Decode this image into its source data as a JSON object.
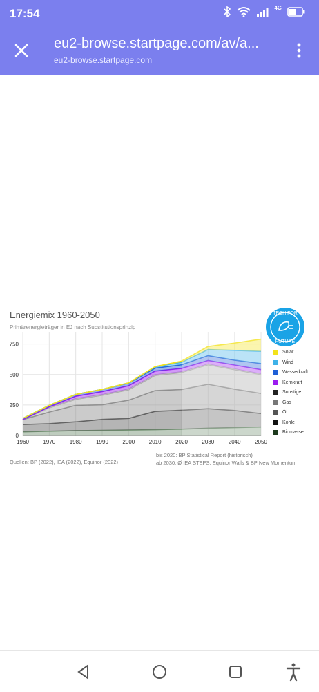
{
  "status": {
    "time": "17:54",
    "network": "4G"
  },
  "browser": {
    "url_main": "eu2-browse.startpage.com/av/a...",
    "url_sub": "eu2-browse.startpage.com"
  },
  "chart": {
    "title": "Energiemix 1960-2050",
    "subtitle": "Primärenergieträger in EJ nach Substitutionsprinzip",
    "source_left": "Quellen: BP (2022), IEA (2022), Equinor (2022)",
    "source_right_1": "bis 2020: BP Statistical Report (historisch)",
    "source_right_2": "ab 2030: Ø IEA STEPS, Equinor Walls & BP New Momentum",
    "badge_top": "TECH FOR",
    "badge_bottom": "FUTURE"
  },
  "chart_data": {
    "type": "area",
    "title": "Energiemix 1960-2050",
    "subtitle": "Primärenergieträger in EJ nach Substitutionsprinzip",
    "x": [
      1960,
      1970,
      1980,
      1990,
      2000,
      2010,
      2020,
      2030,
      2040,
      2050
    ],
    "x_ticks": [
      "1960",
      "1970",
      "1980",
      "1990",
      "2000",
      "2010",
      "2020",
      "2030",
      "2040",
      "2050"
    ],
    "y_ticks": [
      "0",
      "250",
      "500",
      "750"
    ],
    "ylim": [
      0,
      850
    ],
    "grid": true,
    "legend_position": "right",
    "forecast_from": 2020,
    "series": [
      {
        "name": "Biomasse",
        "color": "#6f8f6f",
        "values": [
          30,
          35,
          40,
          42,
          45,
          48,
          52,
          60,
          65,
          70
        ]
      },
      {
        "name": "Kohle",
        "color": "#5a5a5a",
        "values": [
          60,
          62,
          72,
          90,
          95,
          150,
          155,
          160,
          140,
          110
        ]
      },
      {
        "name": "Öl",
        "color": "#8c8c8c",
        "values": [
          40,
          95,
          135,
          120,
          150,
          170,
          170,
          200,
          175,
          165
        ]
      },
      {
        "name": "Gas",
        "color": "#a8a8a8",
        "values": [
          0,
          35,
          50,
          78,
          85,
          125,
          140,
          160,
          160,
          155
        ]
      },
      {
        "name": "Sonstige",
        "color": "#bdbdbd",
        "values": [
          0,
          3,
          5,
          5,
          5,
          5,
          5,
          5,
          6,
          5
        ]
      },
      {
        "name": "Kernkraft",
        "color": "#9b1cf0",
        "values": [
          0,
          5,
          20,
          25,
          28,
          30,
          28,
          30,
          32,
          35
        ]
      },
      {
        "name": "Wasserkraft",
        "color": "#1f5fd6",
        "values": [
          10,
          12,
          15,
          18,
          22,
          25,
          30,
          40,
          40,
          50
        ]
      },
      {
        "name": "Wind",
        "color": "#3fb2e8",
        "values": [
          0,
          0,
          0,
          0,
          2,
          10,
          20,
          50,
          80,
          100
        ]
      },
      {
        "name": "Solar",
        "color": "#f3e21a",
        "values": [
          0,
          0,
          0,
          0,
          0,
          2,
          10,
          25,
          60,
          100
        ]
      }
    ]
  }
}
